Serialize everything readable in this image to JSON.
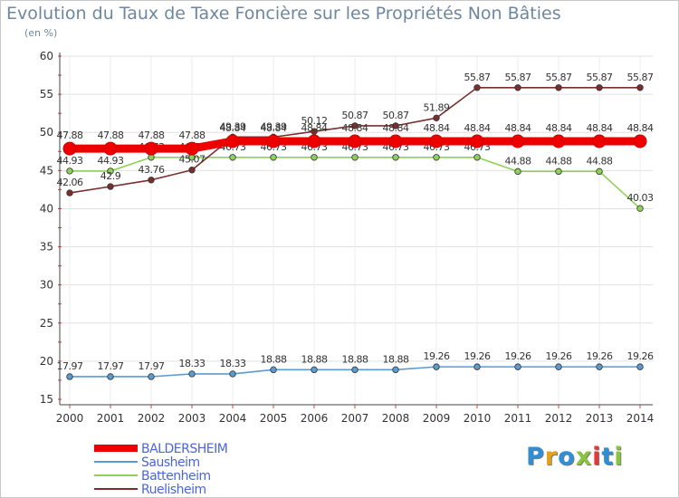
{
  "chart_data": {
    "type": "line",
    "title": "Evolution du Taux de Taxe Foncière sur les Propriétés Non Bâties",
    "subtitle": "(en %)",
    "xlabel": "",
    "ylabel": "",
    "categories": [
      "2000",
      "2001",
      "2002",
      "2003",
      "2004",
      "2005",
      "2006",
      "2007",
      "2008",
      "2009",
      "2010",
      "2011",
      "2012",
      "2013",
      "2014"
    ],
    "ylim": [
      15,
      60
    ],
    "yticks": [
      15,
      20,
      25,
      30,
      35,
      40,
      45,
      50,
      55,
      60
    ],
    "grid": true,
    "legend_position": "bottom-left",
    "series": [
      {
        "name": "BALDERSHEIM",
        "color": "#ee0000",
        "emphasis": true,
        "values": [
          47.88,
          47.88,
          47.88,
          47.88,
          48.84,
          48.84,
          48.84,
          48.84,
          48.84,
          48.84,
          48.84,
          48.84,
          48.84,
          48.84,
          48.84
        ],
        "labels": [
          "47.88",
          "47.88",
          "47.88",
          "47.88",
          "48.84",
          "48.84",
          "48.84",
          "48.84",
          "48.84",
          "48.84",
          "48.84",
          "48.84",
          "48.84",
          "48.84",
          "48.84"
        ]
      },
      {
        "name": "Sausheim",
        "color": "#5b9bd0",
        "emphasis": false,
        "values": [
          17.97,
          17.97,
          17.97,
          18.33,
          18.33,
          18.88,
          18.88,
          18.88,
          18.88,
          19.26,
          19.26,
          19.26,
          19.26,
          19.26,
          19.26
        ],
        "labels": [
          "17.97",
          "17.97",
          "17.97",
          "18.33",
          "18.33",
          "18.88",
          "18.88",
          "18.88",
          "18.88",
          "19.26",
          "19.26",
          "19.26",
          "19.26",
          "19.26",
          "19.26"
        ]
      },
      {
        "name": "Battenheim",
        "color": "#8ed154",
        "emphasis": false,
        "values": [
          44.93,
          44.93,
          46.73,
          46.73,
          46.73,
          46.73,
          46.73,
          46.73,
          46.73,
          46.73,
          46.73,
          44.88,
          44.88,
          44.88,
          40.03
        ],
        "labels": [
          "44.93",
          "44.93",
          "46.73",
          "46.73",
          "46.73",
          "46.73",
          "46.73",
          "46.73",
          "46.73",
          "46.73",
          "46.73",
          "44.88",
          "44.88",
          "44.88",
          "40.03"
        ]
      },
      {
        "name": "Ruelisheim",
        "color": "#7a2e2e",
        "emphasis": false,
        "values": [
          42.06,
          42.9,
          43.76,
          45.07,
          49.39,
          49.39,
          50.12,
          50.87,
          50.87,
          51.89,
          55.87,
          55.87,
          55.87,
          55.87,
          55.87
        ],
        "labels": [
          "42.06",
          "42.9",
          "43.76",
          "45.07",
          "49.39",
          "49.39",
          "50.12",
          "50.87",
          "50.87",
          "51.89",
          "55.87",
          "55.87",
          "55.87",
          "55.87",
          "55.87"
        ]
      }
    ]
  },
  "logo": {
    "text": "Proxiti",
    "letter_colors": [
      "#2e8fd6",
      "#e3a21a",
      "#2e8fd6",
      "#8ac53e",
      "#e03a3a",
      "#2e8fd6",
      "#8ac53e"
    ]
  }
}
